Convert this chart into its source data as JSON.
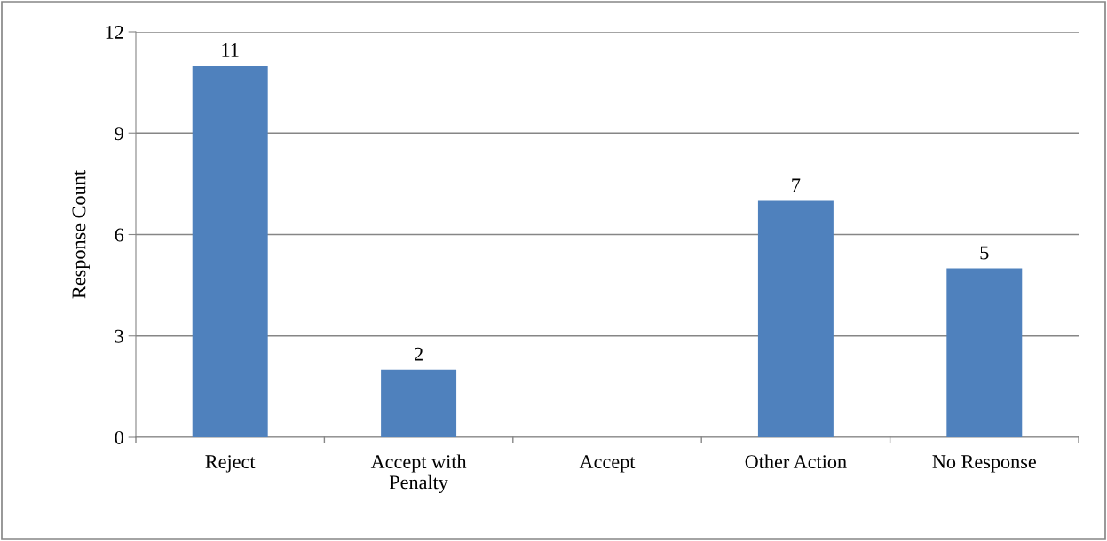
{
  "chart_data": {
    "type": "bar",
    "ylabel": "Response Count",
    "categories": [
      "Reject",
      "Accept with\nPenalty",
      "Accept",
      "Other Action",
      "No Response"
    ],
    "values": [
      11,
      2,
      0,
      7,
      5
    ],
    "value_labels": [
      "11",
      "2",
      null,
      "7",
      "5"
    ],
    "color": "#4f81bd",
    "ylim": [
      0,
      12
    ],
    "yticks": [
      0,
      3,
      6,
      9,
      12
    ],
    "grid": "y"
  }
}
